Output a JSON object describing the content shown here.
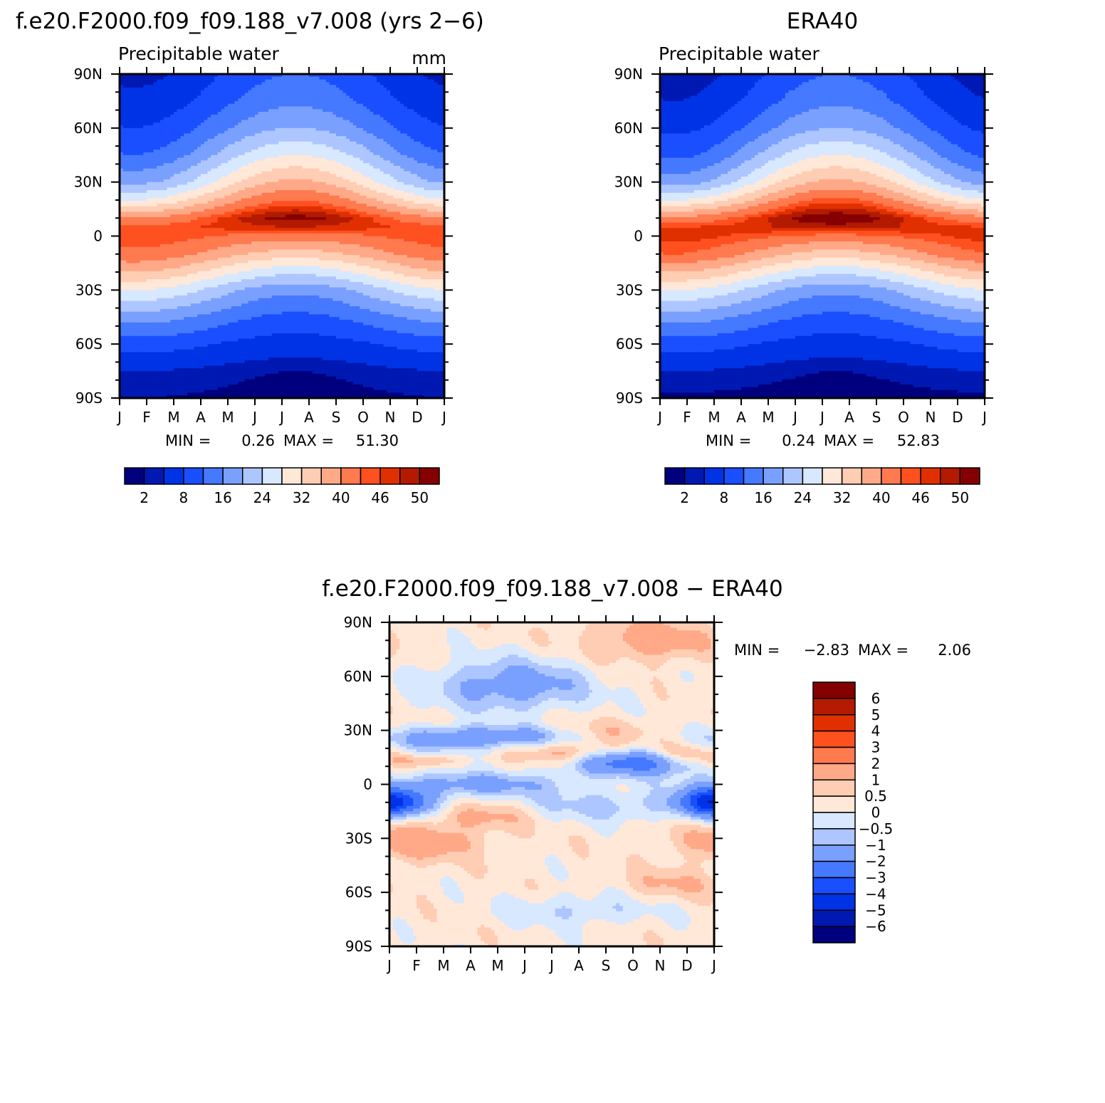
{
  "palette": [
    "#00007f",
    "#0019b3",
    "#0033e6",
    "#1a4fff",
    "#4579ff",
    "#7aa0ff",
    "#aec6ff",
    "#d7e8ff",
    "#ffe8d8",
    "#ffcdb3",
    "#ffa988",
    "#ff7a4e",
    "#ff5020",
    "#e03000",
    "#b31a00",
    "#850000"
  ],
  "chart_data": [
    {
      "type": "heatmap",
      "id": "model",
      "title": "f.e20.F2000.f09_f09.188_v7.008 (yrs 2−6)",
      "variable": "Precipitable water",
      "units": "mm",
      "x_ticks": [
        "J",
        "F",
        "M",
        "A",
        "M",
        "J",
        "J",
        "A",
        "S",
        "O",
        "N",
        "D",
        "J"
      ],
      "y_ticks": [
        "90N",
        "60N",
        "30N",
        "0",
        "30S",
        "60S",
        "90S"
      ],
      "min_text": "MIN =",
      "min_value": "0.26",
      "max_text": "MAX =",
      "max_value": "51.30",
      "colorbar_labels": [
        "2",
        "8",
        "16",
        "24",
        "32",
        "40",
        "46",
        "50"
      ],
      "colorbar_orientation": "horizontal",
      "grid": false,
      "lat_profile": {
        "lat": [
          90,
          75,
          60,
          45,
          30,
          20,
          10,
          5,
          0,
          -10,
          -20,
          -30,
          -45,
          -60,
          -75,
          -90
        ],
        "jan": [
          3,
          5,
          8,
          12,
          19,
          28,
          40,
          45,
          46,
          43,
          36,
          28,
          18,
          10,
          4,
          2
        ],
        "jul": [
          12,
          15,
          20,
          28,
          37,
          44,
          51,
          48,
          42,
          34,
          25,
          17,
          11,
          6,
          2,
          1
        ]
      }
    },
    {
      "type": "heatmap",
      "id": "obs",
      "title": "ERA40",
      "variable": "Precipitable water",
      "units": "",
      "x_ticks": [
        "J",
        "F",
        "M",
        "A",
        "M",
        "J",
        "J",
        "A",
        "S",
        "O",
        "N",
        "D",
        "J"
      ],
      "y_ticks": [
        "90N",
        "60N",
        "30N",
        "0",
        "30S",
        "60S",
        "90S"
      ],
      "min_text": "MIN =",
      "min_value": "0.24",
      "max_text": "MAX =",
      "max_value": "52.83",
      "colorbar_labels": [
        "2",
        "8",
        "16",
        "24",
        "32",
        "40",
        "46",
        "50"
      ],
      "colorbar_orientation": "horizontal",
      "grid": false,
      "lat_profile": {
        "lat": [
          90,
          75,
          60,
          45,
          30,
          20,
          10,
          5,
          0,
          -10,
          -20,
          -30,
          -45,
          -60,
          -75,
          -90
        ],
        "jan": [
          2,
          4,
          7,
          11,
          18,
          28,
          41,
          46,
          47,
          44,
          36,
          28,
          18,
          10,
          4,
          1.5
        ],
        "jul": [
          12,
          15,
          20,
          28,
          37,
          45,
          52,
          49,
          43,
          34,
          25,
          17,
          11,
          6,
          2,
          1
        ]
      }
    },
    {
      "type": "heatmap",
      "id": "diff",
      "title": "f.e20.F2000.f09_f09.188_v7.008 − ERA40",
      "x_ticks": [
        "J",
        "F",
        "M",
        "A",
        "M",
        "J",
        "J",
        "A",
        "S",
        "O",
        "N",
        "D",
        "J"
      ],
      "y_ticks": [
        "90N",
        "60N",
        "30N",
        "0",
        "30S",
        "60S",
        "90S"
      ],
      "min_text": "MIN =",
      "min_value": "−2.83",
      "max_text": "MAX =",
      "max_value": "2.06",
      "colorbar_labels": [
        "6",
        "5",
        "4",
        "3",
        "2",
        "1",
        "0.5",
        "0",
        "−0.5",
        "−1",
        "−2",
        "−3",
        "−4",
        "−5",
        "−6"
      ],
      "colorbar_orientation": "vertical",
      "grid": false,
      "features": [
        {
          "month": 4.5,
          "lat": 55,
          "amp": -1.8,
          "dm": 2.0,
          "dl": 10
        },
        {
          "month": 2.2,
          "lat": 25,
          "amp": -1.6,
          "dm": 1.8,
          "dl": 5
        },
        {
          "month": 5.5,
          "lat": 27,
          "amp": -1.2,
          "dm": 2.2,
          "dl": 4
        },
        {
          "month": 9.0,
          "lat": 12,
          "amp": -2.8,
          "dm": 1.6,
          "dl": 5
        },
        {
          "month": 0.3,
          "lat": -10,
          "amp": -2.4,
          "dm": 1.0,
          "dl": 5
        },
        {
          "month": 11.8,
          "lat": -10,
          "amp": -2.6,
          "dm": 0.8,
          "dl": 6
        },
        {
          "month": 3.0,
          "lat": 0,
          "amp": -1.6,
          "dm": 2.5,
          "dl": 5
        },
        {
          "month": 8.0,
          "lat": -12,
          "amp": -1.0,
          "dm": 2.0,
          "dl": 6
        },
        {
          "month": 9.6,
          "lat": 80,
          "amp": 1.3,
          "dm": 1.6,
          "dl": 8
        },
        {
          "month": 1.0,
          "lat": -32,
          "amp": 1.4,
          "dm": 1.6,
          "dl": 7
        },
        {
          "month": 6.5,
          "lat": 17,
          "amp": 1.2,
          "dm": 1.2,
          "dl": 4
        },
        {
          "month": 8.0,
          "lat": 28,
          "amp": 1.0,
          "dm": 1.5,
          "dl": 5
        },
        {
          "month": 1.0,
          "lat": 13,
          "amp": 1.0,
          "dm": 1.0,
          "dl": 3
        },
        {
          "month": 11.0,
          "lat": 17,
          "amp": 1.3,
          "dm": 0.8,
          "dl": 4
        },
        {
          "month": 3.5,
          "lat": -18,
          "amp": 0.9,
          "dm": 1.2,
          "dl": 5
        },
        {
          "month": 10.5,
          "lat": -55,
          "amp": 0.8,
          "dm": 1.2,
          "dl": 6
        },
        {
          "month": 7.0,
          "lat": -70,
          "amp": -0.8,
          "dm": 2.0,
          "dl": 6
        }
      ]
    }
  ]
}
